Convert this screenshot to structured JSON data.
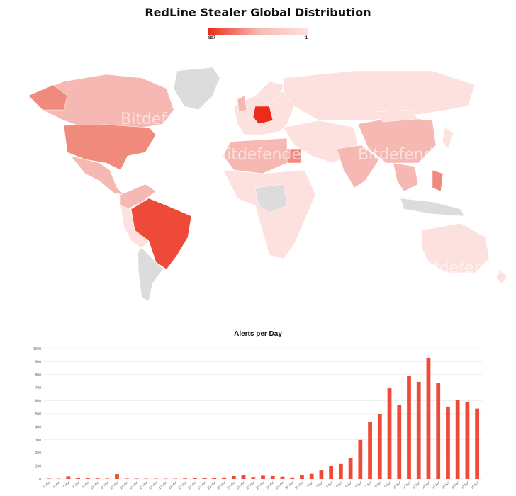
{
  "title": "RedLine Stealer Global Distribution",
  "legend": {
    "max_label": "807",
    "min_label": "1"
  },
  "map": {
    "watermark": "Bitdefender",
    "colors": {
      "none": "#dcdcdc",
      "low": "#fde1de",
      "mid": "#f6b8b2",
      "high": "#ef8a7c",
      "top": "#ee2b1a"
    }
  },
  "chart_data": {
    "type": "bar",
    "title": "Alerts per Day",
    "color": "#ee4a3a",
    "ylim": [
      0,
      1000
    ],
    "yticks": [
      0,
      100,
      200,
      300,
      400,
      500,
      600,
      700,
      800,
      900,
      1000
    ],
    "categories": [
      "5 Mar",
      "6 Mar",
      "7 Mar",
      "8 Mar",
      "9 Mar",
      "10 Mar",
      "11 Mar",
      "12 Mar",
      "13 Mar",
      "14 Mar",
      "15 Mar",
      "16 Mar",
      "17 Mar",
      "18 Mar",
      "19 Mar",
      "20 Mar",
      "21 Mar",
      "22 Mar",
      "23 Mar",
      "24 Mar",
      "25 Mar",
      "26 Mar",
      "27 Mar",
      "28 Mar",
      "29 Mar",
      "30 Mar",
      "31 Mar",
      "1 Apr",
      "2 Apr",
      "3 Apr",
      "4 Apr",
      "5 Apr",
      "6 Apr",
      "7 Apr",
      "8 Apr",
      "9 Apr",
      "10 Apr",
      "11 Apr",
      "12 Apr",
      "13 Apr",
      "14 Apr",
      "15 Apr",
      "16 Apr",
      "17 Apr",
      "18 Apr"
    ],
    "values": [
      3,
      2,
      20,
      10,
      5,
      4,
      3,
      38,
      3,
      3,
      2,
      2,
      2,
      2,
      4,
      5,
      6,
      8,
      12,
      22,
      30,
      15,
      25,
      22,
      18,
      12,
      28,
      40,
      65,
      100,
      115,
      160,
      300,
      440,
      500,
      695,
      570,
      790,
      745,
      930,
      735,
      555,
      605,
      590,
      540
    ]
  }
}
